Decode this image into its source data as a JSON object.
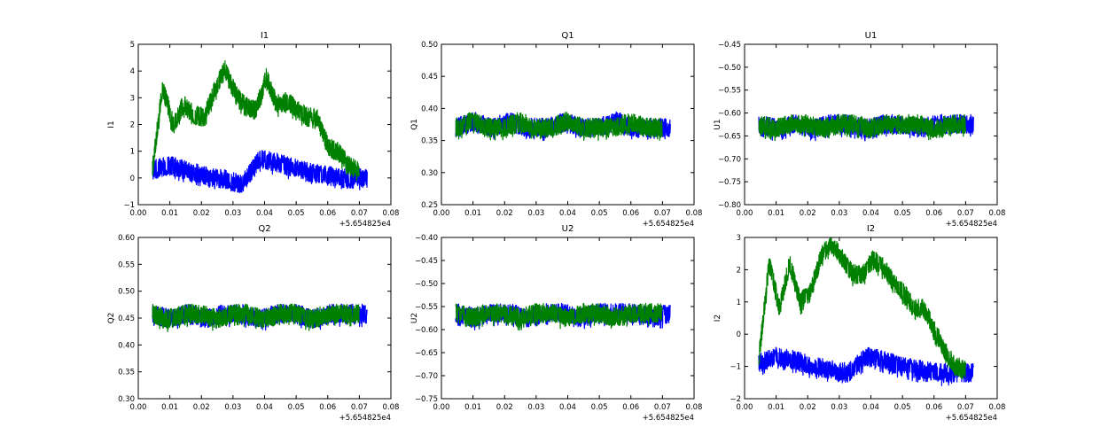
{
  "chart_data": [
    {
      "type": "line",
      "title": "I1",
      "ylabel": "I1",
      "xlim": [
        0,
        0.08
      ],
      "ylim": [
        -1,
        5
      ],
      "xticks": [
        "0.00",
        "0.01",
        "0.02",
        "0.03",
        "0.04",
        "0.05",
        "0.06",
        "0.07",
        "0.08"
      ],
      "yticks": [
        "−1",
        "0",
        "1",
        "2",
        "3",
        "4",
        "5"
      ],
      "x_offset_label": "+5.654825e4",
      "series": [
        {
          "color": "#0000ff",
          "x_range": [
            0.0045,
            0.0725
          ],
          "values": [
            0.55,
            0.7,
            0.5,
            0.3,
            0.2,
            0.0,
            0.95,
            0.8,
            0.6,
            0.4,
            0.3,
            0.2,
            0.25
          ]
        },
        {
          "color": "#008000",
          "x_range": [
            0.0045,
            0.07
          ],
          "values": [
            0.6,
            3.7,
            2.2,
            3.0,
            2.6,
            2.5,
            3.5,
            4.3,
            3.4,
            2.9,
            2.8,
            4.0,
            3.0,
            3.1,
            2.8,
            2.5,
            2.5,
            1.4,
            1.2,
            0.7,
            0.5
          ]
        }
      ]
    },
    {
      "type": "line",
      "title": "Q1",
      "ylabel": "Q1",
      "xlim": [
        0,
        0.08
      ],
      "ylim": [
        0.25,
        0.5
      ],
      "xticks": [
        "0.00",
        "0.01",
        "0.02",
        "0.03",
        "0.04",
        "0.05",
        "0.06",
        "0.07",
        "0.08"
      ],
      "yticks": [
        "0.25",
        "0.30",
        "0.35",
        "0.40",
        "0.45",
        "0.50"
      ],
      "x_offset_label": "+5.654825e4",
      "series": [
        {
          "color": "#0000ff",
          "x_range": [
            0.0045,
            0.0725
          ],
          "values": [
            0.38,
            0.39,
            0.38,
            0.39,
            0.38,
            0.38,
            0.39,
            0.38,
            0.38,
            0.39,
            0.38,
            0.38,
            0.38
          ]
        },
        {
          "color": "#008000",
          "x_range": [
            0.0045,
            0.07
          ],
          "values": [
            0.38,
            0.39,
            0.38,
            0.38,
            0.39,
            0.38,
            0.38,
            0.39,
            0.38,
            0.38,
            0.38,
            0.39,
            0.38,
            0.38
          ]
        }
      ]
    },
    {
      "type": "line",
      "title": "U1",
      "ylabel": "U1",
      "xlim": [
        0,
        0.08
      ],
      "ylim": [
        -0.8,
        -0.45
      ],
      "xticks": [
        "0.00",
        "0.01",
        "0.02",
        "0.03",
        "0.04",
        "0.05",
        "0.06",
        "0.07",
        "0.08"
      ],
      "yticks": [
        "−0.80",
        "−0.75",
        "−0.70",
        "−0.65",
        "−0.60",
        "−0.55",
        "−0.50",
        "−0.45"
      ],
      "x_offset_label": "+5.654825e4",
      "series": [
        {
          "color": "#0000ff",
          "x_range": [
            0.0045,
            0.0725
          ],
          "values": [
            -0.61,
            -0.62,
            -0.61,
            -0.62,
            -0.61,
            -0.61,
            -0.62,
            -0.61,
            -0.61,
            -0.62,
            -0.61,
            -0.61,
            -0.61
          ]
        },
        {
          "color": "#008000",
          "x_range": [
            0.0045,
            0.07
          ],
          "values": [
            -0.61,
            -0.62,
            -0.61,
            -0.61,
            -0.62,
            -0.61,
            -0.61,
            -0.62,
            -0.61,
            -0.61,
            -0.61,
            -0.62,
            -0.61,
            -0.61
          ]
        }
      ]
    },
    {
      "type": "line",
      "title": "Q2",
      "ylabel": "Q2",
      "xlim": [
        0,
        0.08
      ],
      "ylim": [
        0.3,
        0.6
      ],
      "xticks": [
        "0.00",
        "0.01",
        "0.02",
        "0.03",
        "0.04",
        "0.05",
        "0.06",
        "0.07",
        "0.08"
      ],
      "yticks": [
        "0.30",
        "0.35",
        "0.40",
        "0.45",
        "0.50",
        "0.55",
        "0.60"
      ],
      "x_offset_label": "+5.654825e4",
      "series": [
        {
          "color": "#0000ff",
          "x_range": [
            0.0045,
            0.0725
          ],
          "values": [
            0.47,
            0.46,
            0.47,
            0.46,
            0.47,
            0.47,
            0.46,
            0.47,
            0.47,
            0.46,
            0.47,
            0.47,
            0.47
          ]
        },
        {
          "color": "#008000",
          "x_range": [
            0.0045,
            0.07
          ],
          "values": [
            0.47,
            0.46,
            0.47,
            0.47,
            0.46,
            0.47,
            0.47,
            0.46,
            0.47,
            0.47,
            0.46,
            0.47,
            0.47,
            0.47
          ]
        }
      ]
    },
    {
      "type": "line",
      "title": "U2",
      "ylabel": "U2",
      "xlim": [
        0,
        0.08
      ],
      "ylim": [
        -0.75,
        -0.4
      ],
      "xticks": [
        "0.00",
        "0.01",
        "0.02",
        "0.03",
        "0.04",
        "0.05",
        "0.06",
        "0.07",
        "0.08"
      ],
      "yticks": [
        "−0.75",
        "−0.70",
        "−0.65",
        "−0.60",
        "−0.55",
        "−0.50",
        "−0.45",
        "−0.40"
      ],
      "x_offset_label": "+5.654825e4",
      "series": [
        {
          "color": "#0000ff",
          "x_range": [
            0.0045,
            0.0725
          ],
          "values": [
            -0.55,
            -0.56,
            -0.55,
            -0.55,
            -0.56,
            -0.55,
            -0.55,
            -0.56,
            -0.55,
            -0.55,
            -0.55,
            -0.56,
            -0.55
          ]
        },
        {
          "color": "#008000",
          "x_range": [
            0.0045,
            0.07
          ],
          "values": [
            -0.55,
            -0.56,
            -0.55,
            -0.55,
            -0.56,
            -0.55,
            -0.55,
            -0.56,
            -0.55,
            -0.55,
            -0.56,
            -0.55,
            -0.55,
            -0.55
          ]
        }
      ]
    },
    {
      "type": "line",
      "title": "I2",
      "ylabel": "I2",
      "xlim": [
        0,
        0.08
      ],
      "ylim": [
        -2,
        3
      ],
      "xticks": [
        "0.00",
        "0.01",
        "0.02",
        "0.03",
        "0.04",
        "0.05",
        "0.06",
        "0.07",
        "0.08"
      ],
      "yticks": [
        "−2",
        "−1",
        "0",
        "1",
        "2",
        "3"
      ],
      "x_offset_label": "+5.654825e4",
      "series": [
        {
          "color": "#0000ff",
          "x_range": [
            0.0045,
            0.0725
          ],
          "values": [
            -0.7,
            -0.5,
            -0.6,
            -0.8,
            -0.9,
            -1.0,
            -0.5,
            -0.6,
            -0.8,
            -0.9,
            -1.0,
            -1.0,
            -1.0
          ]
        },
        {
          "color": "#008000",
          "x_range": [
            0.0045,
            0.07
          ],
          "values": [
            -0.6,
            2.4,
            1.0,
            2.4,
            1.2,
            1.5,
            2.6,
            3.0,
            2.6,
            2.1,
            2.0,
            2.5,
            2.3,
            1.8,
            1.5,
            1.0,
            1.0,
            0.3,
            -0.3,
            -0.8,
            -0.9
          ]
        }
      ]
    }
  ]
}
